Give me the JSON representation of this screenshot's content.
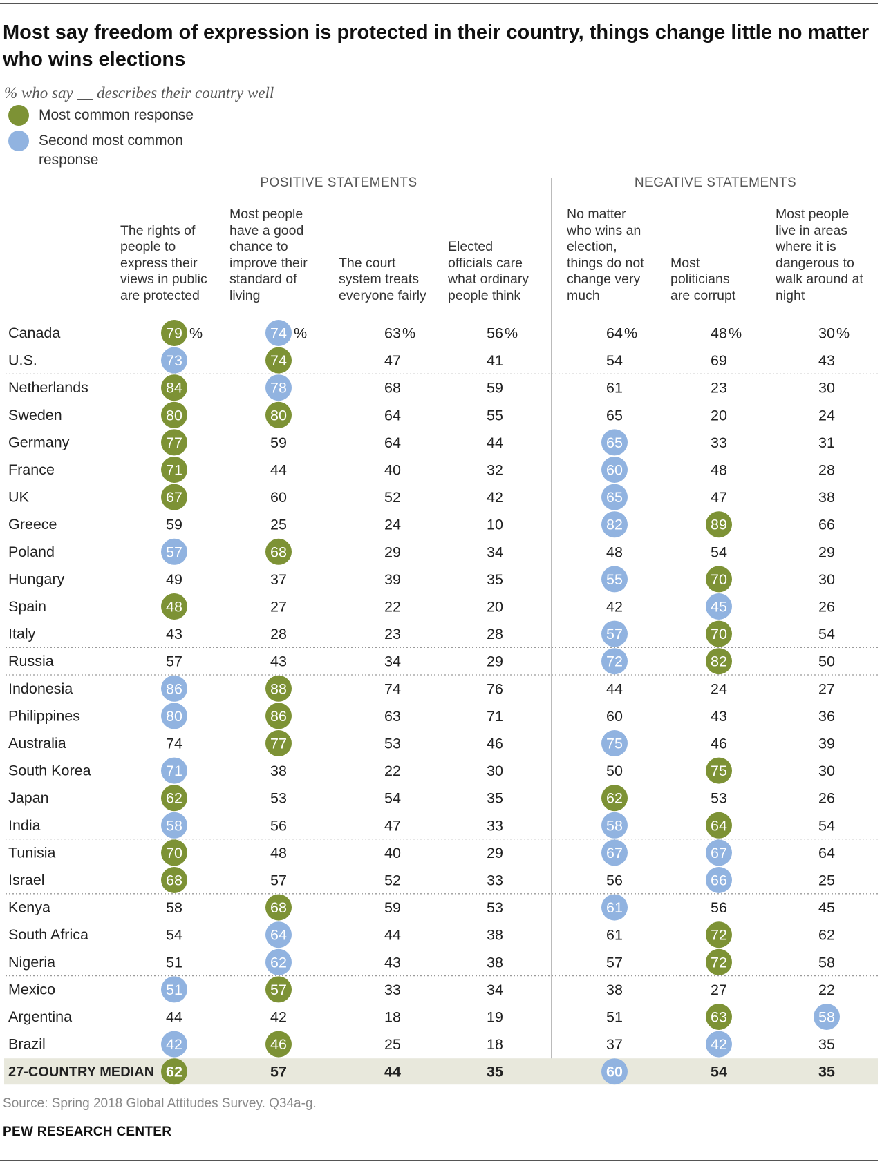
{
  "title": "Most say freedom of expression is protected in their country, things change little no matter who wins elections",
  "subtitle": "% who say __ describes their country well",
  "legend": {
    "most_common": "Most common response",
    "second_line1": "Second most common",
    "second_line2": "response"
  },
  "sections": {
    "positive": "POSITIVE STATEMENTS",
    "negative": "NEGATIVE STATEMENTS"
  },
  "colors": {
    "most_common": "#7d9235",
    "second_most": "#91b3e0",
    "median_band": "#e8e8dc"
  },
  "footer": {
    "source": "Source: Spring 2018 Global Attitudes Survey. Q34a-g.",
    "brand": "PEW RESEARCH CENTER"
  },
  "chart_data": {
    "type": "table",
    "columns": [
      {
        "lines": [
          "The rights of",
          "people to",
          "express their",
          "views in public",
          "are protected"
        ]
      },
      {
        "lines": [
          "Most people",
          "have a good",
          "chance to",
          "improve their",
          "standard of",
          "living"
        ]
      },
      {
        "lines": [
          "The court",
          "system treats",
          "everyone fairly"
        ]
      },
      {
        "lines": [
          "Elected",
          "officials care",
          "what ordinary",
          "people think"
        ]
      },
      {
        "lines": [
          "No matter",
          "who wins an",
          "election,",
          "things do not",
          "change very",
          "much"
        ]
      },
      {
        "lines": [
          "Most",
          "politicians",
          "are corrupt"
        ]
      },
      {
        "lines": [
          "Most people",
          "live in areas",
          "where it is",
          "dangerous to",
          "walk around at",
          "night"
        ]
      }
    ],
    "highlight_codes": {
      "g": "most common response",
      "b": "second most common response"
    },
    "rows": [
      {
        "country": "Canada",
        "values": [
          79,
          74,
          63,
          56,
          64,
          48,
          30
        ],
        "hl": [
          "g",
          "b",
          "",
          "",
          "",
          "",
          ""
        ]
      },
      {
        "country": "U.S.",
        "values": [
          73,
          74,
          47,
          41,
          54,
          69,
          43
        ],
        "hl": [
          "b",
          "g",
          "",
          "",
          "",
          "",
          ""
        ]
      },
      {
        "country": "Netherlands",
        "values": [
          84,
          78,
          68,
          59,
          61,
          23,
          30
        ],
        "hl": [
          "g",
          "b",
          "",
          "",
          "",
          "",
          ""
        ]
      },
      {
        "country": "Sweden",
        "values": [
          80,
          80,
          64,
          55,
          65,
          20,
          24
        ],
        "hl": [
          "g",
          "g",
          "",
          "",
          "",
          "",
          ""
        ]
      },
      {
        "country": "Germany",
        "values": [
          77,
          59,
          64,
          44,
          65,
          33,
          31
        ],
        "hl": [
          "g",
          "",
          "",
          "",
          "b",
          "",
          ""
        ]
      },
      {
        "country": "France",
        "values": [
          71,
          44,
          40,
          32,
          60,
          48,
          28
        ],
        "hl": [
          "g",
          "",
          "",
          "",
          "b",
          "",
          ""
        ]
      },
      {
        "country": "UK",
        "values": [
          67,
          60,
          52,
          42,
          65,
          47,
          38
        ],
        "hl": [
          "g",
          "",
          "",
          "",
          "b",
          "",
          ""
        ]
      },
      {
        "country": "Greece",
        "values": [
          59,
          25,
          24,
          10,
          82,
          89,
          66
        ],
        "hl": [
          "",
          "",
          "",
          "",
          "b",
          "g",
          ""
        ]
      },
      {
        "country": "Poland",
        "values": [
          57,
          68,
          29,
          34,
          48,
          54,
          29
        ],
        "hl": [
          "b",
          "g",
          "",
          "",
          "",
          "",
          ""
        ]
      },
      {
        "country": "Hungary",
        "values": [
          49,
          37,
          39,
          35,
          55,
          70,
          30
        ],
        "hl": [
          "",
          "",
          "",
          "",
          "b",
          "g",
          ""
        ]
      },
      {
        "country": "Spain",
        "values": [
          48,
          27,
          22,
          20,
          42,
          45,
          26
        ],
        "hl": [
          "g",
          "",
          "",
          "",
          "",
          "b",
          ""
        ]
      },
      {
        "country": "Italy",
        "values": [
          43,
          28,
          23,
          28,
          57,
          70,
          54
        ],
        "hl": [
          "",
          "",
          "",
          "",
          "b",
          "g",
          ""
        ]
      },
      {
        "country": "Russia",
        "values": [
          57,
          43,
          34,
          29,
          72,
          82,
          50
        ],
        "hl": [
          "",
          "",
          "",
          "",
          "b",
          "g",
          ""
        ]
      },
      {
        "country": "Indonesia",
        "values": [
          86,
          88,
          74,
          76,
          44,
          24,
          27
        ],
        "hl": [
          "b",
          "g",
          "",
          "",
          "",
          "",
          ""
        ]
      },
      {
        "country": "Philippines",
        "values": [
          80,
          86,
          63,
          71,
          60,
          43,
          36
        ],
        "hl": [
          "b",
          "g",
          "",
          "",
          "",
          "",
          ""
        ]
      },
      {
        "country": "Australia",
        "values": [
          74,
          77,
          53,
          46,
          75,
          46,
          39
        ],
        "hl": [
          "",
          "g",
          "",
          "",
          "b",
          "",
          ""
        ]
      },
      {
        "country": "South Korea",
        "values": [
          71,
          38,
          22,
          30,
          50,
          75,
          30
        ],
        "hl": [
          "b",
          "",
          "",
          "",
          "",
          "g",
          ""
        ]
      },
      {
        "country": "Japan",
        "values": [
          62,
          53,
          54,
          35,
          62,
          53,
          26
        ],
        "hl": [
          "g",
          "",
          "",
          "",
          "g",
          "",
          ""
        ]
      },
      {
        "country": "India",
        "values": [
          58,
          56,
          47,
          33,
          58,
          64,
          54
        ],
        "hl": [
          "b",
          "",
          "",
          "",
          "b",
          "g",
          ""
        ]
      },
      {
        "country": "Tunisia",
        "values": [
          70,
          48,
          40,
          29,
          67,
          67,
          64
        ],
        "hl": [
          "g",
          "",
          "",
          "",
          "b",
          "b",
          ""
        ]
      },
      {
        "country": "Israel",
        "values": [
          68,
          57,
          52,
          33,
          56,
          66,
          25
        ],
        "hl": [
          "g",
          "",
          "",
          "",
          "",
          "b",
          ""
        ]
      },
      {
        "country": "Kenya",
        "values": [
          58,
          68,
          59,
          53,
          61,
          56,
          45
        ],
        "hl": [
          "",
          "g",
          "",
          "",
          "b",
          "",
          ""
        ]
      },
      {
        "country": "South Africa",
        "values": [
          54,
          64,
          44,
          38,
          61,
          72,
          62
        ],
        "hl": [
          "",
          "b",
          "",
          "",
          "",
          "g",
          ""
        ]
      },
      {
        "country": "Nigeria",
        "values": [
          51,
          62,
          43,
          38,
          57,
          72,
          58
        ],
        "hl": [
          "",
          "b",
          "",
          "",
          "",
          "g",
          ""
        ]
      },
      {
        "country": "Mexico",
        "values": [
          51,
          57,
          33,
          34,
          38,
          27,
          22
        ],
        "hl": [
          "b",
          "g",
          "",
          "",
          "",
          "",
          ""
        ]
      },
      {
        "country": "Argentina",
        "values": [
          44,
          42,
          18,
          19,
          51,
          63,
          58
        ],
        "hl": [
          "",
          "",
          "",
          "",
          "",
          "g",
          "b"
        ]
      },
      {
        "country": "Brazil",
        "values": [
          42,
          46,
          25,
          18,
          37,
          42,
          35
        ],
        "hl": [
          "b",
          "g",
          "",
          "",
          "",
          "b",
          ""
        ]
      }
    ],
    "median": {
      "label": "27-COUNTRY MEDIAN",
      "values": [
        62,
        57,
        44,
        35,
        60,
        54,
        35
      ],
      "hl": [
        "g",
        "",
        "",
        "",
        "b",
        "",
        ""
      ]
    },
    "region_breaks_after": [
      "U.S.",
      "Italy",
      "Russia",
      "India",
      "Israel",
      "Nigeria"
    ]
  }
}
